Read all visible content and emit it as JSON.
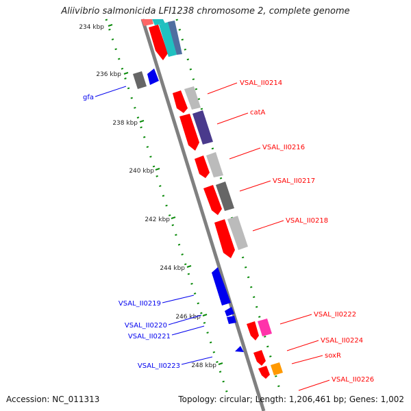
{
  "title": "Aliivibrio salmonicida LFI1238 chromosome 2, complete genome",
  "footer": {
    "accession": "Accession: NC_011313",
    "summary": "Topology: circular; Length: 1,206,461 bp; Genes: 1,002"
  },
  "ticks": [
    "234 kbp",
    "236 kbp",
    "238 kbp",
    "240 kbp",
    "242 kbp",
    "244 kbp",
    "246 kbp",
    "248 kbp"
  ],
  "gene_labels": {
    "reverse_strand": [
      "gfa",
      "VSAL_II0219",
      "VSAL_II0220",
      "VSAL_II0221",
      "VSAL_II0223"
    ],
    "forward_strand": [
      "VSAL_II0214",
      "catA",
      "VSAL_II0216",
      "VSAL_II0217",
      "VSAL_II0218",
      "VSAL_II0222",
      "VSAL_II0224",
      "soxR",
      "VSAL_II0226"
    ]
  },
  "colors": {
    "forward_gene": "#ff0000",
    "reverse_gene": "#0000ee",
    "backbone": "#808080",
    "gc_skew_dots": "#0a8a0a",
    "teal_feature": "#20c0c0",
    "purple_feature": "#4a3a8c",
    "orange_feature": "#ff9900",
    "magenta_feature": "#ff33aa"
  }
}
